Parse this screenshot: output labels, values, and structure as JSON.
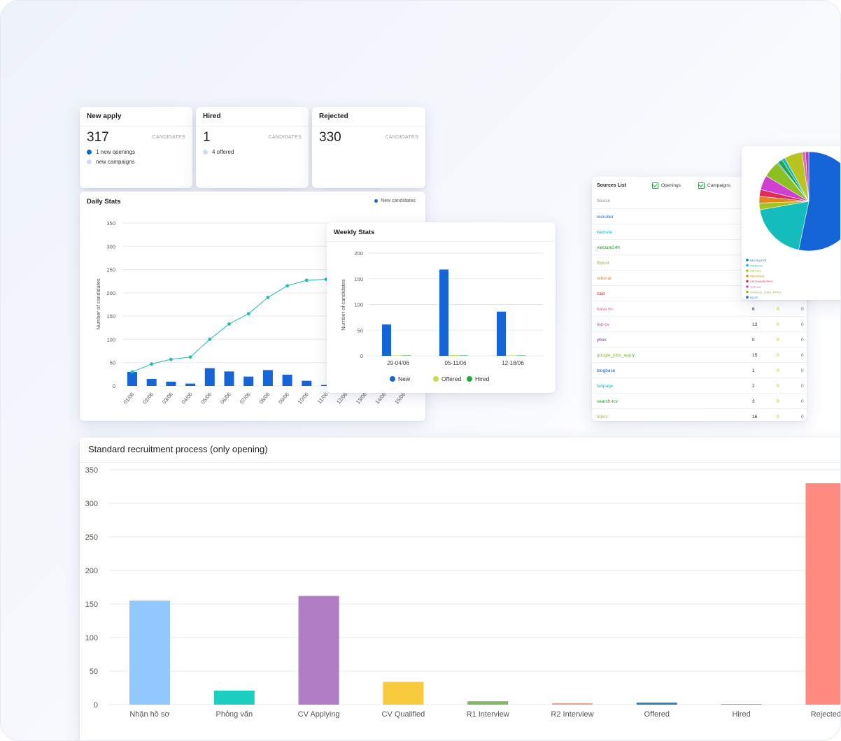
{
  "stats": [
    {
      "title": "New apply",
      "value": "317",
      "unit": "CANDIDATES",
      "rows": [
        {
          "text": "1 new openings",
          "color": "#1565d8"
        },
        {
          "text": "new campaigns",
          "color": "#cfdcf3"
        }
      ]
    },
    {
      "title": "Hired",
      "value": "1",
      "unit": "CANDIDATES",
      "rows": [
        {
          "text": "4 offered",
          "color": "#cfdcf3"
        }
      ]
    },
    {
      "title": "Rejected",
      "value": "330",
      "unit": "CANDIDATES",
      "rows": []
    }
  ],
  "daily": {
    "title": "Daily Stats",
    "legend": "New candidates",
    "ylabel": "Number of candidates",
    "ylim": [
      0,
      350
    ],
    "yticks": [
      "0",
      "50",
      "100",
      "150",
      "200",
      "250",
      "300",
      "350"
    ],
    "x": [
      "01/06",
      "02/06",
      "03/06",
      "04/06",
      "05/06",
      "06/06",
      "07/06",
      "08/06",
      "09/06",
      "10/06",
      "11/06",
      "12/06",
      "13/06",
      "14/06",
      "15/06"
    ],
    "bars": [
      30,
      15,
      9,
      5,
      38,
      31,
      20,
      34,
      24,
      11,
      2
    ],
    "line": [
      30,
      47,
      57,
      62,
      100,
      133,
      155,
      190,
      215,
      227,
      229
    ]
  },
  "weekly": {
    "title": "Weekly Stats",
    "ylabel": "Number of candidates",
    "ylim": [
      0,
      200
    ],
    "yticks": [
      "0",
      "50",
      "100",
      "150",
      "200"
    ],
    "categories": [
      "29-04/06",
      "05-11/06",
      "12-18/06"
    ],
    "series": [
      {
        "name": "New",
        "color": "#1565d8",
        "values": [
          61,
          168,
          86
        ]
      },
      {
        "name": "Offered",
        "color": "#c7dc4a",
        "values": [
          0,
          1,
          0
        ]
      },
      {
        "name": "Hired",
        "color": "#1eaa3c",
        "values": [
          0,
          0,
          0
        ]
      }
    ]
  },
  "sources": {
    "title": "Sources List",
    "checks": [
      "Openings",
      "Campaigns"
    ],
    "header": "Source",
    "rows": [
      {
        "name": "recruiter",
        "color": "#1565d8",
        "a": "",
        "b": "",
        "c": ""
      },
      {
        "name": "website",
        "color": "#14b8c4",
        "a": "",
        "b": "",
        "c": ""
      },
      {
        "name": "vieclam24h",
        "color": "#1a9a2c",
        "a": "",
        "b": "",
        "c": ""
      },
      {
        "name": "fbpost",
        "color": "#a8b820",
        "a": "",
        "b": "",
        "c": ""
      },
      {
        "name": "referral",
        "color": "#e0861a",
        "a": "",
        "b": "",
        "c": ""
      },
      {
        "name": "zalo",
        "color": "#e02020",
        "a": "",
        "b": "",
        "c": ""
      },
      {
        "name": "base.vn",
        "color": "#e0608a",
        "a": "6",
        "b": "0",
        "c": "0"
      },
      {
        "name": "top-cv",
        "color": "#d040c0",
        "a": "13",
        "b": "0",
        "c": "0"
      },
      {
        "name": "ybox",
        "color": "#7030a0",
        "a": "0",
        "b": "0",
        "c": "0"
      },
      {
        "name": "google_jobs_apply",
        "color": "#7cbf20",
        "a": "15",
        "b": "0",
        "c": "0"
      },
      {
        "name": "blogbase",
        "color": "#1565d8",
        "a": "1",
        "b": "0",
        "c": "0"
      },
      {
        "name": "fanpage",
        "color": "#14b8c4",
        "a": "2",
        "b": "0",
        "c": "0"
      },
      {
        "name": "search-tcv",
        "color": "#1a9a2c",
        "a": "3",
        "b": "0",
        "c": "0"
      },
      {
        "name": "topcv",
        "color": "#a8b820",
        "a": "16",
        "b": "0",
        "c": "0"
      }
    ]
  },
  "pie": {
    "slices": [
      {
        "name": "RECRUITER",
        "value": 146,
        "color": "#1565d8"
      },
      {
        "name": "WEBSITE",
        "value": 52,
        "color": "#14bcbc"
      },
      {
        "name": "FBPOST",
        "value": 6,
        "color": "#a8c020"
      },
      {
        "name": "REFERRAL",
        "value": 6,
        "color": "#e0861a"
      },
      {
        "name": "VIETNAMWORKS",
        "value": 6,
        "color": "#e02a5a"
      },
      {
        "name": "TOP-CV",
        "value": 13,
        "color": "#d040d0"
      },
      {
        "name": "GOOGLE_JOBS_APPLY",
        "value": 15,
        "color": "#8cbf20"
      },
      {
        "name": "BLOG",
        "value": 1,
        "color": "#1565d8"
      },
      {
        "name": "",
        "value": 4,
        "color": "#1aa84a"
      },
      {
        "name": "",
        "value": 3,
        "color": "#14b8c4"
      },
      {
        "name": "",
        "value": 16,
        "color": "#b8c420"
      },
      {
        "name": "",
        "value": 3,
        "color": "#e06aa0"
      },
      {
        "name": "",
        "value": 3,
        "color": "#b040c0"
      }
    ]
  },
  "process": {
    "title": "Standard recruitment process (only opening)",
    "ylim": [
      0,
      350
    ],
    "yticks": [
      "0",
      "50",
      "100",
      "150",
      "200",
      "250",
      "300",
      "350"
    ],
    "categories": [
      "Nhận hồ sơ",
      "Phỏng vấn",
      "CV Applying",
      "CV Qualified",
      "R1 Interview",
      "R2 Interview",
      "Offered",
      "Hired",
      "Rejected"
    ],
    "values": [
      155,
      21,
      162,
      34,
      5,
      2,
      3,
      1,
      330
    ],
    "colors": [
      "#90c8ff",
      "#1ccfbf",
      "#b07cc3",
      "#f9cb3c",
      "#7fb860",
      "#f39c8c",
      "#2980b9",
      "#7fa8d0",
      "#ff8a80"
    ]
  }
}
